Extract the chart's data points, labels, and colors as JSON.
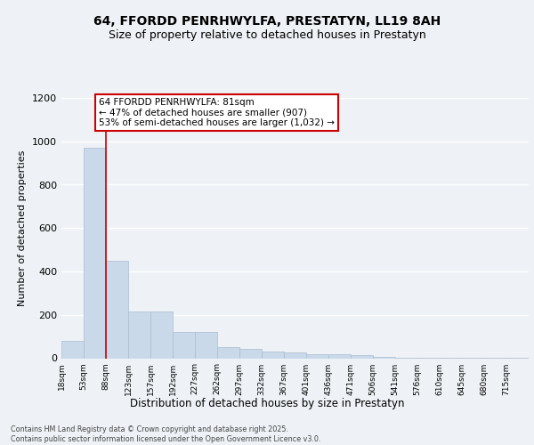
{
  "title_line1": "64, FFORDD PENRHWYLFA, PRESTATYN, LL19 8AH",
  "title_line2": "Size of property relative to detached houses in Prestatyn",
  "xlabel": "Distribution of detached houses by size in Prestatyn",
  "ylabel": "Number of detached properties",
  "bar_color": "#c9d9ea",
  "bar_edge_color": "#aabcce",
  "vline_color": "#cc0000",
  "vline_x": 2,
  "annotation_text": "64 FFORDD PENRHWYLFA: 81sqm\n← 47% of detached houses are smaller (907)\n53% of semi-detached houses are larger (1,032) →",
  "annotation_box_color": "#ffffff",
  "annotation_box_edge": "#cc0000",
  "footer_text": "Contains HM Land Registry data © Crown copyright and database right 2025.\nContains public sector information licensed under the Open Government Licence v3.0.",
  "bin_labels": [
    "18sqm",
    "53sqm",
    "88sqm",
    "123sqm",
    "157sqm",
    "192sqm",
    "227sqm",
    "262sqm",
    "297sqm",
    "332sqm",
    "367sqm",
    "401sqm",
    "436sqm",
    "471sqm",
    "506sqm",
    "541sqm",
    "576sqm",
    "610sqm",
    "645sqm",
    "680sqm",
    "715sqm"
  ],
  "bar_heights": [
    80,
    970,
    450,
    215,
    215,
    120,
    120,
    50,
    45,
    30,
    25,
    20,
    20,
    15,
    5,
    3,
    2,
    2,
    1,
    1,
    1
  ],
  "ylim": [
    0,
    1200
  ],
  "yticks": [
    0,
    200,
    400,
    600,
    800,
    1000,
    1200
  ],
  "background_color": "#eef2f6",
  "plot_background": "#eef2f6",
  "grid_color": "#ffffff",
  "title_fontsize": 10,
  "subtitle_fontsize": 9
}
